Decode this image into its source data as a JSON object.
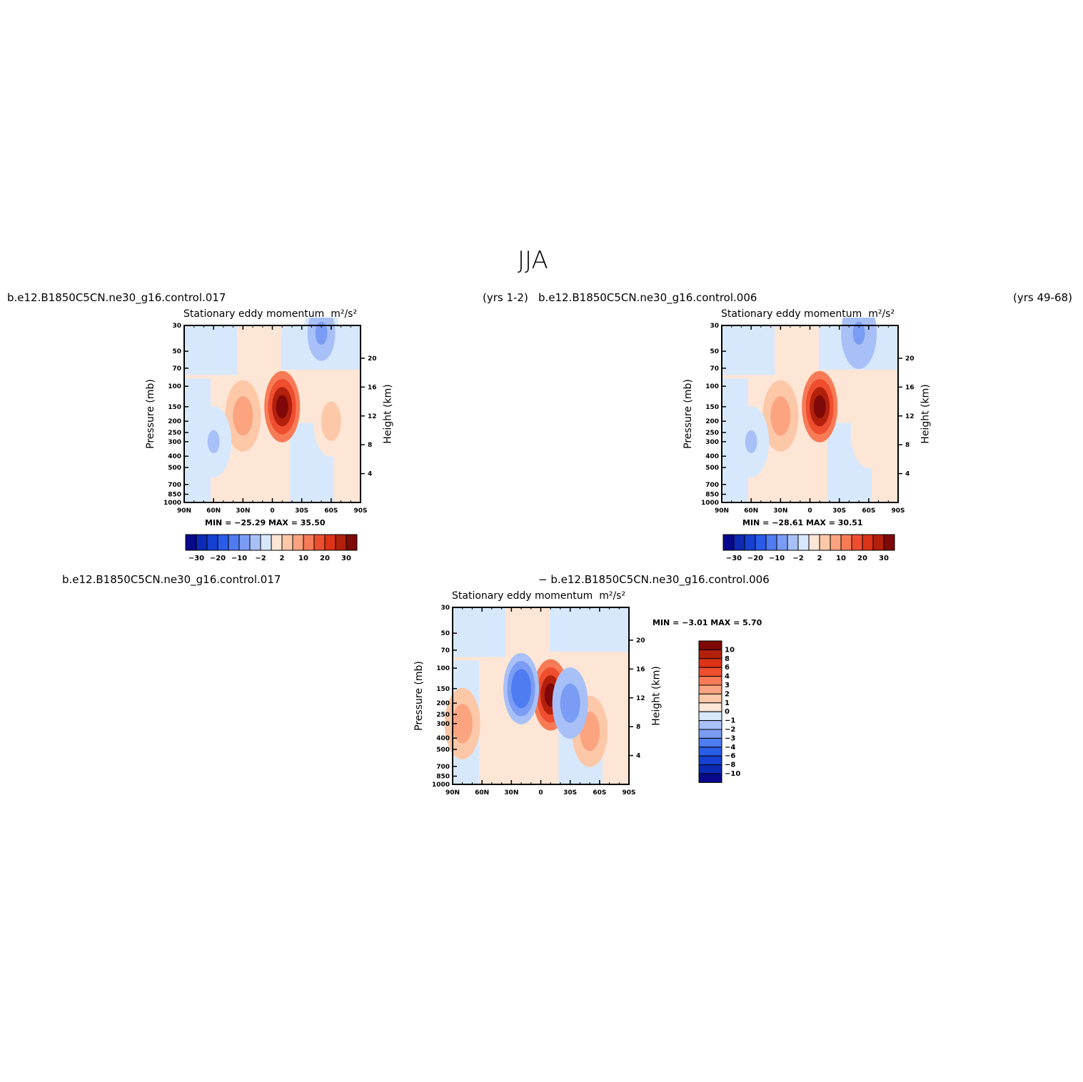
{
  "main_title": "JJA",
  "panels": [
    {
      "left_label": "b.e12.B1850C5CN.ne30_g16.control.017",
      "right_label": "(yrs 1-2)",
      "plot_title": "Stationary eddy momentum",
      "units": "m²/s²",
      "min_max": "MIN =  −25.29    MAX =   35.50"
    },
    {
      "left_label": "b.e12.B1850C5CN.ne30_g16.control.006",
      "right_label": "(yrs 49-68)",
      "plot_title": "Stationary eddy momentum",
      "units": "m²/s²",
      "min_max": "MIN =  −28.61    MAX =   30.51"
    },
    {
      "left_label": "b.e12.B1850C5CN.ne30_g16.control.017",
      "right_label": "− b.e12.B1850C5CN.ne30_g16.control.006",
      "plot_title": "Stationary eddy momentum",
      "units": "m²/s²",
      "min_max": "MIN =    −3.01    MAX =     5.70"
    }
  ],
  "chart_data": [
    {
      "type": "heatmap",
      "title": "Stationary eddy momentum",
      "units": "m²/s²",
      "xlabel": "",
      "ylabel": "Pressure (mb)",
      "y2label": "Height (km)",
      "x_ticks": [
        "90N",
        "60N",
        "30N",
        "0",
        "30S",
        "60S",
        "90S"
      ],
      "y_ticks": [
        30,
        50,
        70,
        100,
        150,
        200,
        250,
        300,
        400,
        500,
        700,
        850,
        1000
      ],
      "y2_ticks": [
        20,
        16,
        12,
        8,
        4
      ],
      "xlim": [
        90,
        -90
      ],
      "ylim": [
        1000,
        30
      ],
      "y_scale": "log",
      "min": -25.29,
      "max": 35.5,
      "colorbar_labels": [
        "−30",
        "−20",
        "−10",
        "−2",
        "2",
        "10",
        "20",
        "30"
      ],
      "features": [
        {
          "lat": -10,
          "p": 150,
          "value": 35.5
        },
        {
          "lat": 30,
          "p": 180,
          "value": 14
        },
        {
          "lat": -60,
          "p": 200,
          "value": 6
        },
        {
          "lat": -50,
          "p": 35,
          "value": -10
        },
        {
          "lat": 60,
          "p": 300,
          "value": -5
        }
      ]
    },
    {
      "type": "heatmap",
      "title": "Stationary eddy momentum",
      "units": "m²/s²",
      "xlabel": "",
      "ylabel": "Pressure (mb)",
      "y2label": "Height (km)",
      "x_ticks": [
        "90N",
        "60N",
        "30N",
        "0",
        "30S",
        "60S",
        "90S"
      ],
      "y_ticks": [
        30,
        50,
        70,
        100,
        150,
        200,
        250,
        300,
        400,
        500,
        700,
        850,
        1000
      ],
      "y2_ticks": [
        20,
        16,
        12,
        8,
        4
      ],
      "xlim": [
        90,
        -90
      ],
      "ylim": [
        1000,
        30
      ],
      "y_scale": "log",
      "min": -28.61,
      "max": 30.51,
      "colorbar_labels": [
        "−30",
        "−20",
        "−10",
        "−2",
        "2",
        "10",
        "20",
        "30"
      ],
      "features": [
        {
          "lat": -10,
          "p": 150,
          "value": 30.5
        },
        {
          "lat": 30,
          "p": 180,
          "value": 12
        },
        {
          "lat": -60,
          "p": 250,
          "value": 4
        },
        {
          "lat": -50,
          "p": 35,
          "value": -10
        },
        {
          "lat": 60,
          "p": 300,
          "value": -5
        }
      ]
    },
    {
      "type": "heatmap",
      "title": "Stationary eddy momentum",
      "units": "m²/s²",
      "xlabel": "",
      "ylabel": "Pressure (mb)",
      "y2label": "Height (km)",
      "x_ticks": [
        "90N",
        "60N",
        "30N",
        "0",
        "30S",
        "60S",
        "90S"
      ],
      "y_ticks": [
        30,
        50,
        70,
        100,
        150,
        200,
        250,
        300,
        400,
        500,
        700,
        850,
        1000
      ],
      "y2_ticks": [
        20,
        16,
        12,
        8,
        4
      ],
      "xlim": [
        90,
        -90
      ],
      "ylim": [
        1000,
        30
      ],
      "y_scale": "log",
      "min": -3.01,
      "max": 5.7,
      "colorbar_labels": [
        "10",
        "8",
        "6",
        "4",
        "3",
        "2",
        "1",
        "0",
        "−1",
        "−2",
        "−3",
        "−4",
        "−6",
        "−8",
        "−10"
      ],
      "features": [
        {
          "lat": -10,
          "p": 170,
          "value": 5.7
        },
        {
          "lat": -50,
          "p": 350,
          "value": 2
        },
        {
          "lat": 80,
          "p": 300,
          "value": 2
        },
        {
          "lat": 20,
          "p": 150,
          "value": -3
        },
        {
          "lat": -30,
          "p": 200,
          "value": -2
        }
      ]
    }
  ],
  "colors": {
    "colorbar_16": [
      "#08088c",
      "#0c2ab4",
      "#1540d2",
      "#2a5ce8",
      "#4f7cf0",
      "#7b9cf4",
      "#a8c0f8",
      "#d8e8fc",
      "#fde6d6",
      "#fcc8a8",
      "#fca37f",
      "#f77b56",
      "#ee4e2f",
      "#dd3316",
      "#b3200c",
      "#7f0808"
    ],
    "colorbar_17": [
      "#7f0808",
      "#b3200c",
      "#dd3316",
      "#ee4e2f",
      "#f77b56",
      "#fca37f",
      "#fcc8a8",
      "#fde6d6",
      "#d8e8fc",
      "#a8c0f8",
      "#7b9cf4",
      "#4f7cf0",
      "#2a5ce8",
      "#1540d2",
      "#0c2ab4",
      "#08088c"
    ]
  }
}
